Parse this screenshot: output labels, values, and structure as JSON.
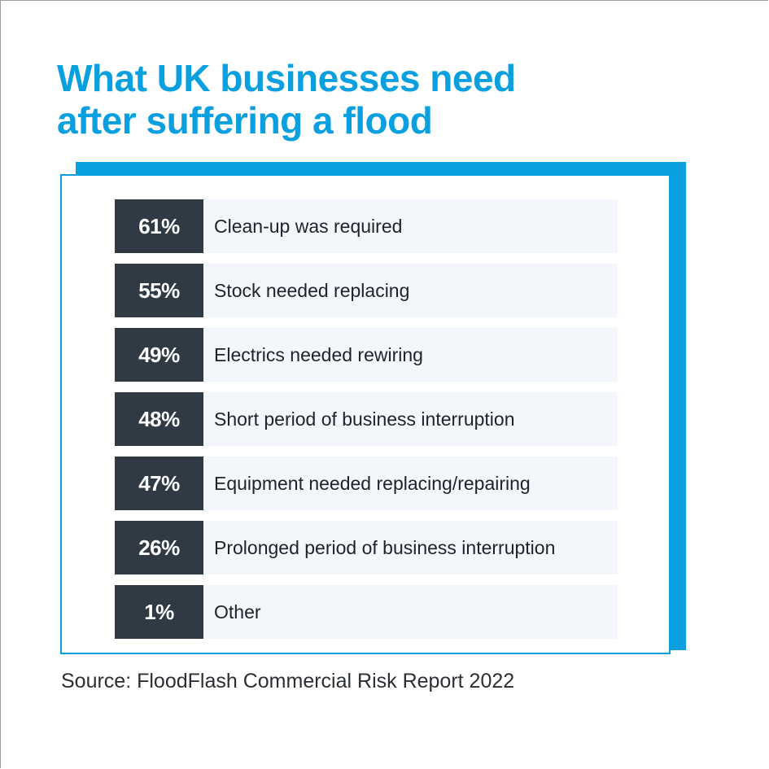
{
  "title_lines": [
    "What UK businesses need",
    "after suffering a flood"
  ],
  "source": "Source: FloodFlash Commercial Risk Report 2022",
  "colors": {
    "accent": "#0aa0e0",
    "value_box": "#2f3a44",
    "row_bg": "#f3f7fb",
    "text": "#1d2328"
  },
  "chart_data": {
    "type": "table",
    "title": "What UK businesses need after suffering a flood",
    "unit": "%",
    "categories": [
      "Clean-up was required",
      "Stock needed replacing",
      "Electrics needed rewiring",
      "Short period of business interruption",
      "Equipment needed replacing/repairing",
      "Prolonged period of business interruption",
      "Other"
    ],
    "values": [
      61,
      55,
      49,
      48,
      47,
      26,
      1
    ],
    "value_labels": [
      "61%",
      "55%",
      "49%",
      "48%",
      "47%",
      "26%",
      "1%"
    ]
  }
}
